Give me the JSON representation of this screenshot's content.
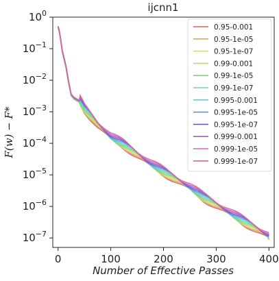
{
  "chart_data": {
    "type": "line",
    "title": "ijcnn1",
    "xlabel": "Number of Effective Passes",
    "ylabel": "F(w) − F*",
    "yscale": "log",
    "xlim": [
      -10,
      410
    ],
    "ylim_exp": [
      -7.3,
      0
    ],
    "xticks": [
      0,
      100,
      200,
      300,
      400
    ],
    "yticks_exp": [
      0,
      -1,
      -2,
      -3,
      -4,
      -5,
      -6,
      -7
    ],
    "y_tick_base": "10",
    "grid": false,
    "legend_position": "top-right",
    "series": [
      {
        "name": "0.95-0.001",
        "color": "#d7605f",
        "offset": 0.0
      },
      {
        "name": "0.95-1e-05",
        "color": "#e0a260",
        "offset": 0.02
      },
      {
        "name": "0.95-1e-07",
        "color": "#d6d86a",
        "offset": 0.04
      },
      {
        "name": "0.99-0.001",
        "color": "#a8dc6c",
        "offset": 0.06
      },
      {
        "name": "0.99-1e-05",
        "color": "#79d47d",
        "offset": 0.08
      },
      {
        "name": "0.99-1e-07",
        "color": "#6ed2b7",
        "offset": 0.1
      },
      {
        "name": "0.995-0.001",
        "color": "#66c9d6",
        "offset": 0.12
      },
      {
        "name": "0.995-1e-05",
        "color": "#5f8fd6",
        "offset": 0.14
      },
      {
        "name": "0.995-1e-07",
        "color": "#6a58c8",
        "offset": 0.16
      },
      {
        "name": "0.999-0.001",
        "color": "#9a5cc8",
        "offset": 0.18
      },
      {
        "name": "0.999-1e-05",
        "color": "#d660c8",
        "offset": 0.2
      },
      {
        "name": "0.999-1e-07",
        "color": "#d66a9c",
        "offset": 0.22
      }
    ],
    "x": [
      0,
      2,
      5,
      8,
      10,
      15,
      20,
      25,
      30,
      40,
      50,
      75,
      100,
      125,
      150,
      175,
      200,
      225,
      250,
      275,
      300,
      325,
      350,
      375,
      400
    ],
    "y_log10": [
      -0.35,
      -0.45,
      -0.75,
      -1.1,
      -1.25,
      -1.6,
      -2.1,
      -2.5,
      -2.6,
      -2.7,
      -3.0,
      -3.5,
      -3.9,
      -4.15,
      -4.45,
      -4.75,
      -5.0,
      -5.25,
      -5.5,
      -5.8,
      -6.05,
      -6.3,
      -6.55,
      -6.8,
      -7.05
    ]
  }
}
